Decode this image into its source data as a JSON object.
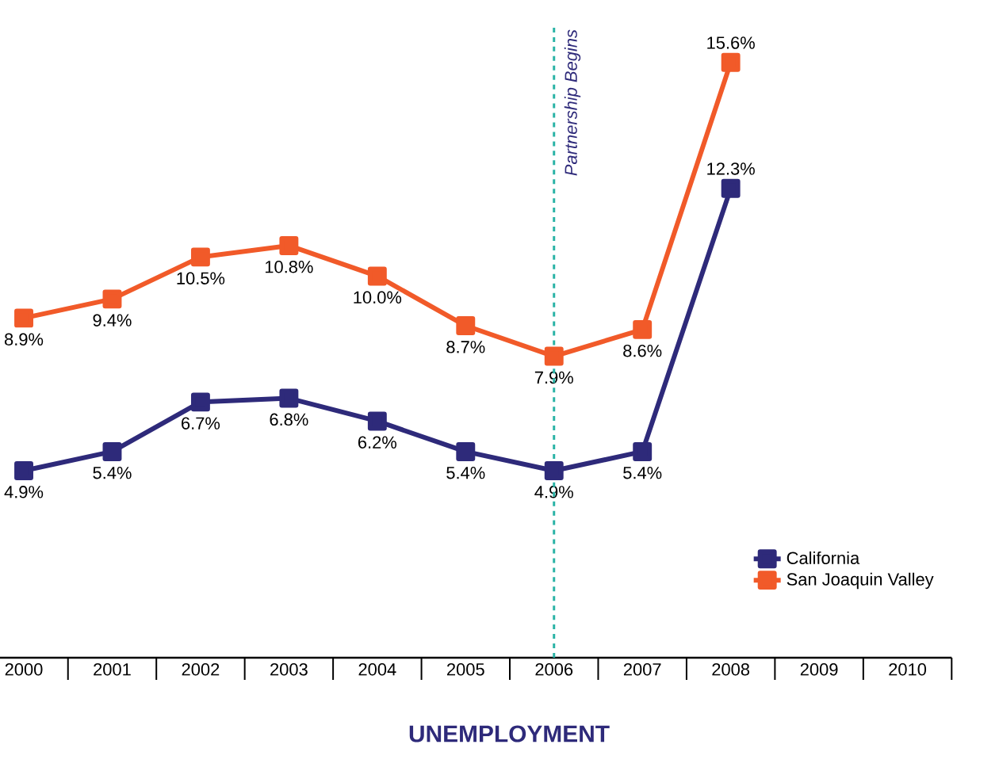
{
  "chart_data": {
    "type": "line",
    "title": "UNEMPLOYMENT",
    "categories": [
      "2000",
      "2001",
      "2002",
      "2003",
      "2004",
      "2005",
      "2006",
      "2007",
      "2008",
      "2009",
      "2010"
    ],
    "series": [
      {
        "name": "California",
        "color": "#2e2a7a",
        "values": [
          4.9,
          5.4,
          6.7,
          6.8,
          6.2,
          5.4,
          4.9,
          5.4,
          12.3,
          null,
          null
        ],
        "value_labels": [
          "4.9%",
          "5.4%",
          "6.7%",
          "6.8%",
          "6.2%",
          "5.4%",
          "4.9%",
          "5.4%",
          "12.3%",
          null,
          null
        ]
      },
      {
        "name": "San Joaquin Valley",
        "color": "#f15a29",
        "values": [
          8.9,
          9.4,
          10.5,
          10.8,
          10.0,
          8.7,
          7.9,
          8.6,
          15.6,
          null,
          null
        ],
        "value_labels": [
          "8.9%",
          "9.4%",
          "10.5%",
          "10.8%",
          "10.0%",
          "8.7%",
          "7.9%",
          "8.6%",
          "15.6%",
          null,
          null
        ]
      }
    ],
    "ref_lines": [
      {
        "axis": "x",
        "value": "2006",
        "label": "Partnership Begins",
        "color": "#2ab3a6",
        "line_style": "dashed"
      }
    ],
    "marker": "square",
    "legend": "bottom right"
  }
}
